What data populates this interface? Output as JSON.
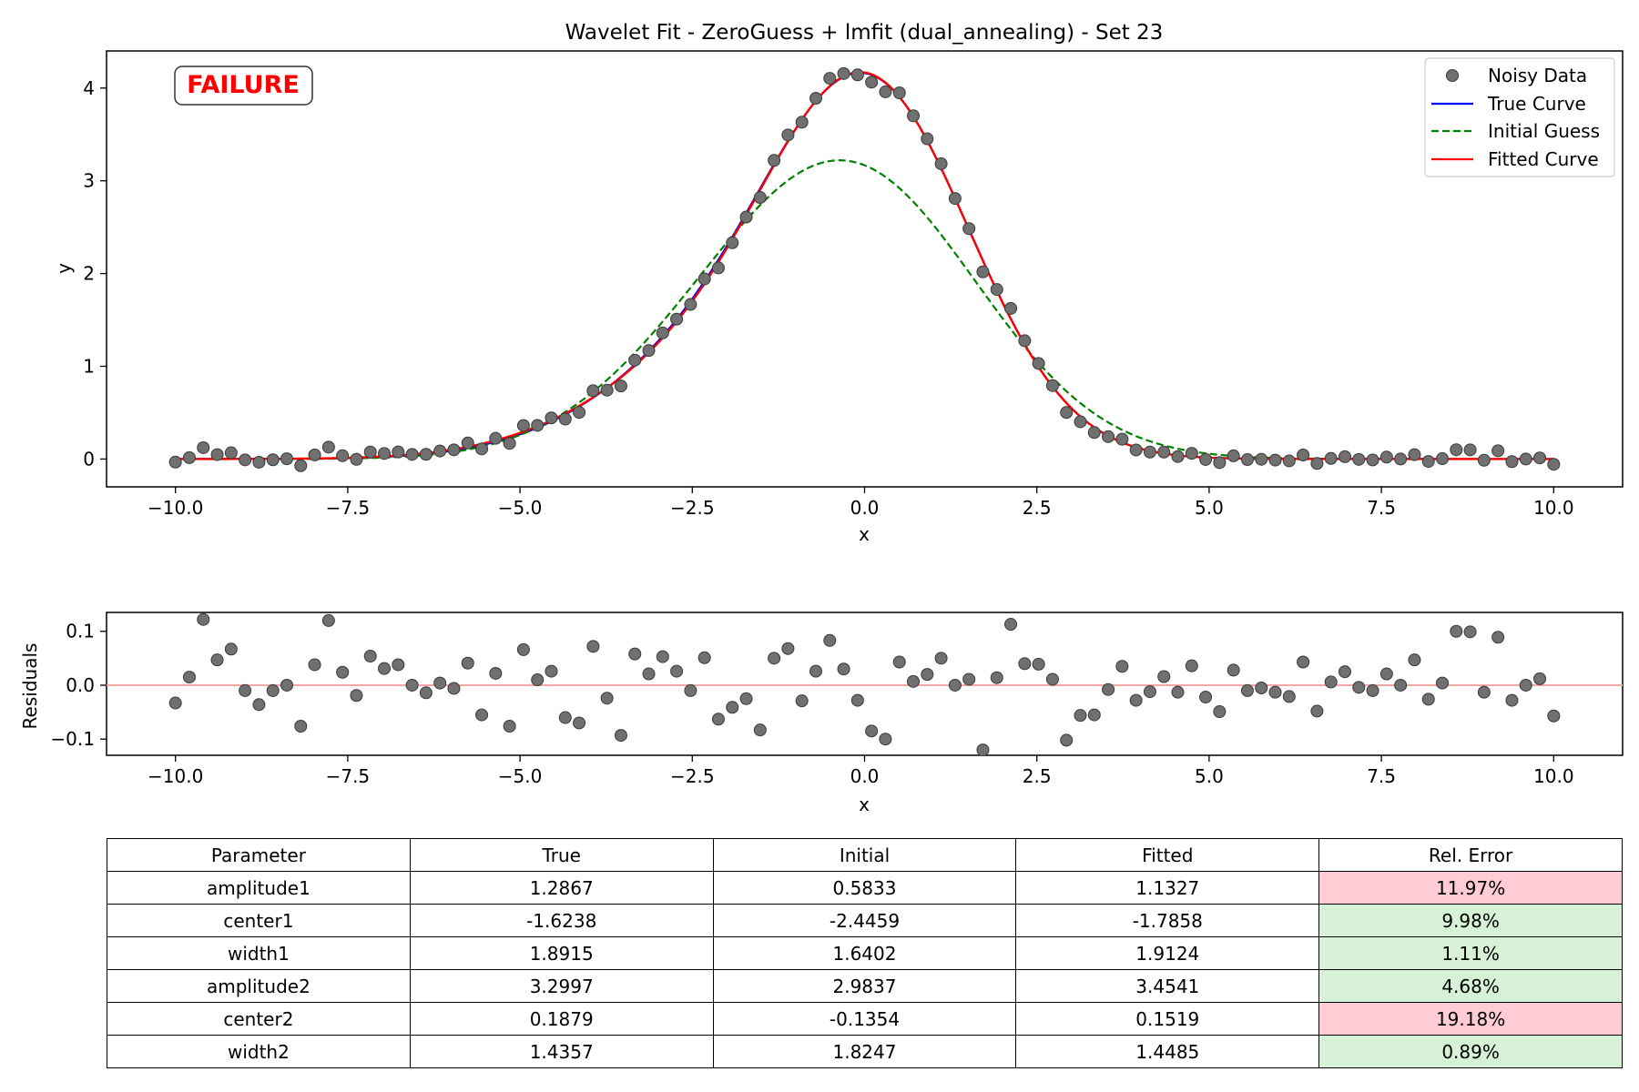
{
  "chart_data": [
    {
      "type": "line",
      "title": "Wavelet Fit - ZeroGuess + lmfit (dual_annealing) - Set 23",
      "xlabel": "x",
      "ylabel": "y",
      "xlim": [
        -11,
        11
      ],
      "ylim": [
        -0.3,
        4.4
      ],
      "xticks": [
        "−10.0",
        "−7.5",
        "−5.0",
        "−2.5",
        "0.0",
        "2.5",
        "5.0",
        "7.5",
        "10.0"
      ],
      "yticks": [
        "0",
        "1",
        "2",
        "3",
        "4"
      ],
      "status_badge": "FAILURE",
      "legend": {
        "placement": "top-right",
        "entries": [
          "Noisy Data",
          "True Curve",
          "Initial Guess",
          "Fitted Curve"
        ]
      },
      "colors": {
        "noisy_data": "#707070",
        "true_curve": "#0000ff",
        "initial_guess": "#008000",
        "fitted_curve": "#ff0000",
        "failure_text": "#ff0000"
      },
      "curve_parameters": {
        "true": {
          "amplitude1": 1.2867,
          "center1": -1.6238,
          "width1": 1.8915,
          "amplitude2": 3.2997,
          "center2": 0.1879,
          "width2": 1.4357
        },
        "initial": {
          "amplitude1": 0.5833,
          "center1": -2.4459,
          "width1": 1.6402,
          "amplitude2": 2.9837,
          "center2": -0.1354,
          "width2": 1.8247
        },
        "fitted": {
          "amplitude1": 1.1327,
          "center1": -1.7858,
          "width1": 1.9124,
          "amplitude2": 3.4541,
          "center2": 0.1519,
          "width2": 1.4485
        }
      },
      "series": [
        {
          "name": "Noisy Data",
          "x_start": -10.0,
          "x_step": 0.20202,
          "residuals": [
            -0.033,
            0.015,
            0.122,
            0.047,
            0.067,
            -0.01,
            -0.036,
            -0.01,
            0.0,
            -0.076,
            0.038,
            0.12,
            0.024,
            -0.019,
            0.054,
            0.031,
            0.038,
            0.0,
            -0.014,
            0.004,
            -0.006,
            0.041,
            -0.055,
            0.022,
            -0.076,
            0.066,
            0.01,
            0.026,
            -0.06,
            -0.07,
            0.072,
            -0.024,
            -0.093,
            0.058,
            0.021,
            0.053,
            0.026,
            -0.01,
            0.051,
            -0.063,
            -0.041,
            -0.025,
            -0.083,
            0.05,
            0.068,
            -0.029,
            0.026,
            0.083,
            0.03,
            -0.028,
            -0.085,
            -0.1,
            0.043,
            0.007,
            0.02,
            0.05,
            0.0,
            0.011,
            -0.12,
            0.014,
            0.113,
            0.04,
            0.039,
            0.011,
            -0.102,
            -0.056,
            -0.055,
            -0.008,
            0.035,
            -0.028,
            -0.012,
            0.016,
            -0.013,
            0.036,
            -0.022,
            -0.049,
            0.028,
            -0.01,
            -0.005,
            -0.013,
            -0.021,
            0.043,
            -0.048,
            0.006,
            0.025,
            -0.004,
            -0.01,
            0.021,
            0.0,
            0.047,
            -0.026,
            0.004,
            0.1,
            0.099,
            -0.013,
            0.089,
            -0.028,
            0.0,
            0.012,
            -0.057
          ]
        },
        {
          "name": "True Curve"
        },
        {
          "name": "Initial Guess"
        },
        {
          "name": "Fitted Curve"
        }
      ]
    },
    {
      "type": "scatter",
      "title": "",
      "xlabel": "x",
      "ylabel": "Residuals",
      "xlim": [
        -11,
        11
      ],
      "ylim": [
        -0.13,
        0.135
      ],
      "xticks": [
        "−10.0",
        "−7.5",
        "−5.0",
        "−2.5",
        "0.0",
        "2.5",
        "5.0",
        "7.5",
        "10.0"
      ],
      "yticks": [
        "0.1",
        "0.0",
        "−0.1"
      ],
      "zero_line_color": "#f4a6a6"
    },
    {
      "type": "table",
      "columns": [
        "Parameter",
        "True",
        "Initial",
        "Fitted",
        "Rel. Error"
      ],
      "rows": [
        {
          "parameter": "amplitude1",
          "true": "1.2867",
          "initial": "0.5833",
          "fitted": "1.1327",
          "rel_error": "11.97%",
          "status": "bad"
        },
        {
          "parameter": "center1",
          "true": "-1.6238",
          "initial": "-2.4459",
          "fitted": "-1.7858",
          "rel_error": "9.98%",
          "status": "good"
        },
        {
          "parameter": "width1",
          "true": "1.8915",
          "initial": "1.6402",
          "fitted": "1.9124",
          "rel_error": "1.11%",
          "status": "good"
        },
        {
          "parameter": "amplitude2",
          "true": "3.2997",
          "initial": "2.9837",
          "fitted": "3.4541",
          "rel_error": "4.68%",
          "status": "good"
        },
        {
          "parameter": "center2",
          "true": "0.1879",
          "initial": "-0.1354",
          "fitted": "0.1519",
          "rel_error": "19.18%",
          "status": "bad"
        },
        {
          "parameter": "width2",
          "true": "1.4357",
          "initial": "1.8247",
          "fitted": "1.4485",
          "rel_error": "0.89%",
          "status": "good"
        }
      ],
      "status_colors": {
        "bad": "#ffccd5",
        "good": "#d6f1d6"
      }
    }
  ]
}
